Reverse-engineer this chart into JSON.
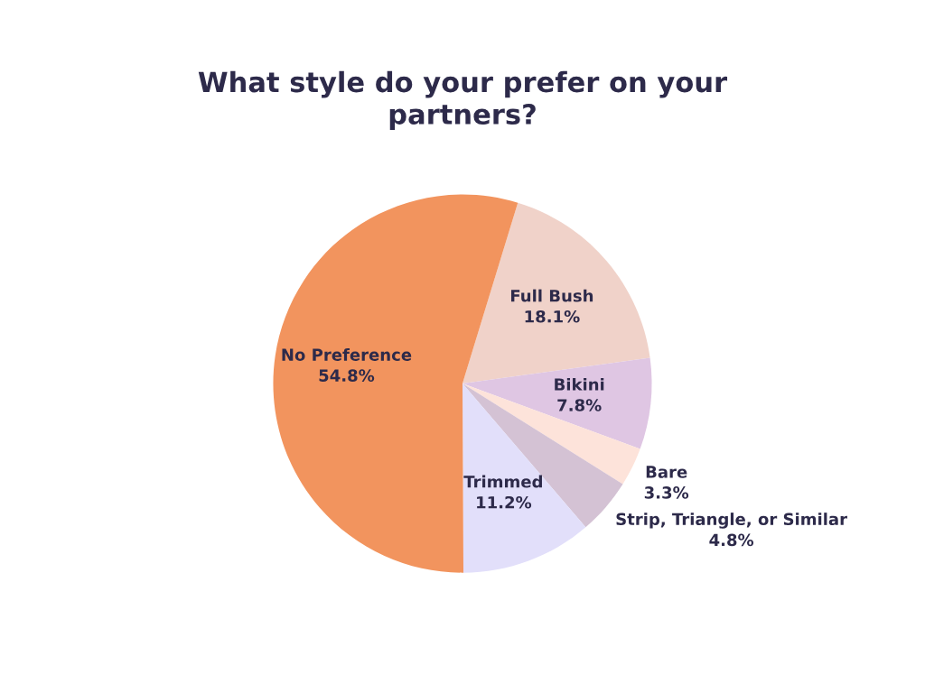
{
  "chart_data": {
    "type": "pie",
    "title": "What style do your prefer on your\npartners?",
    "categories": [
      "Full Bush",
      "Bikini",
      "Bare",
      "Strip, Triangle, or Similar",
      "Trimmed",
      "No Preference"
    ],
    "values": [
      18.1,
      7.8,
      3.3,
      4.8,
      11.2,
      54.8
    ],
    "colors": [
      "#f0d2c9",
      "#dfc6e3",
      "#fde3da",
      "#d4c2d4",
      "#e2dffa",
      "#f2945e"
    ],
    "value_labels": [
      "18.1%",
      "7.8%",
      "3.3%",
      "4.8%",
      "11.2%",
      "54.8%"
    ]
  }
}
